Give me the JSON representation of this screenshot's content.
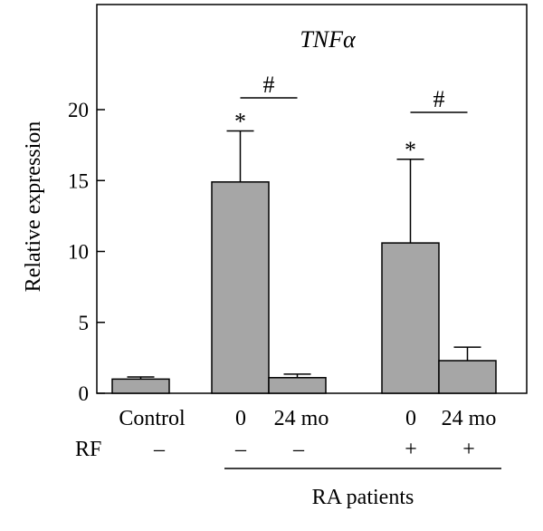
{
  "chart_data": {
    "type": "bar",
    "title": "TNFα",
    "xlabel": "",
    "ylabel": "Relative expression",
    "ylim": [
      0,
      28
    ],
    "yticks": [
      0,
      5,
      10,
      15,
      20
    ],
    "grid": false,
    "bar_color": "#a6a6a6",
    "categories": [
      "Control",
      "0",
      "24 mo",
      "0",
      "24 mo"
    ],
    "values": [
      1.0,
      14.9,
      1.1,
      10.6,
      2.3
    ],
    "error_upper": [
      1.15,
      18.5,
      1.35,
      16.5,
      3.25
    ],
    "significance_stars": [
      "",
      "*",
      "",
      "*",
      ""
    ],
    "hash_brackets": [
      {
        "from": 1,
        "to": 2,
        "label": "#"
      },
      {
        "from": 3,
        "to": 4,
        "label": "#"
      }
    ],
    "rf_row": {
      "label": "RF",
      "values": [
        "–",
        "–",
        "–",
        "+",
        "+"
      ]
    },
    "group_label": "RA patients"
  }
}
